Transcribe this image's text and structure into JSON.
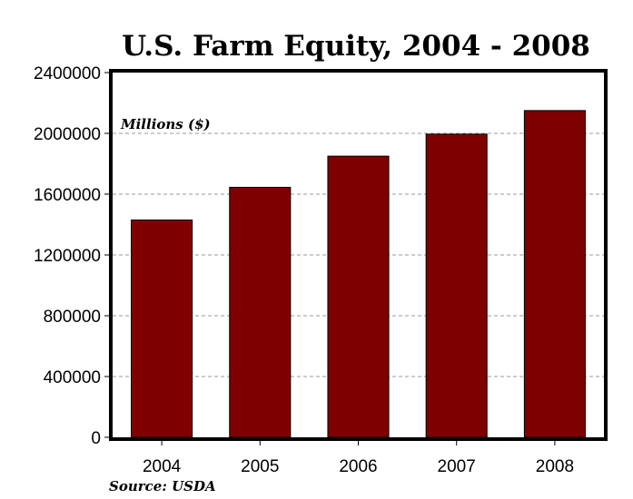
{
  "chart_data": {
    "type": "bar",
    "title": "U.S. Farm Equity, 2004 - 2008",
    "unit_label": "Millions ($)",
    "source": "Source: USDA",
    "categories": [
      "2004",
      "2005",
      "2006",
      "2007",
      "2008"
    ],
    "values": [
      1430000,
      1645000,
      1850000,
      1995000,
      2150000
    ],
    "ylim": [
      0,
      2400000
    ],
    "yticks": [
      "0",
      "400000",
      "800000",
      "1200000",
      "1600000",
      "2000000",
      "2400000"
    ],
    "grid": true,
    "bar_color": "#7f0000"
  }
}
